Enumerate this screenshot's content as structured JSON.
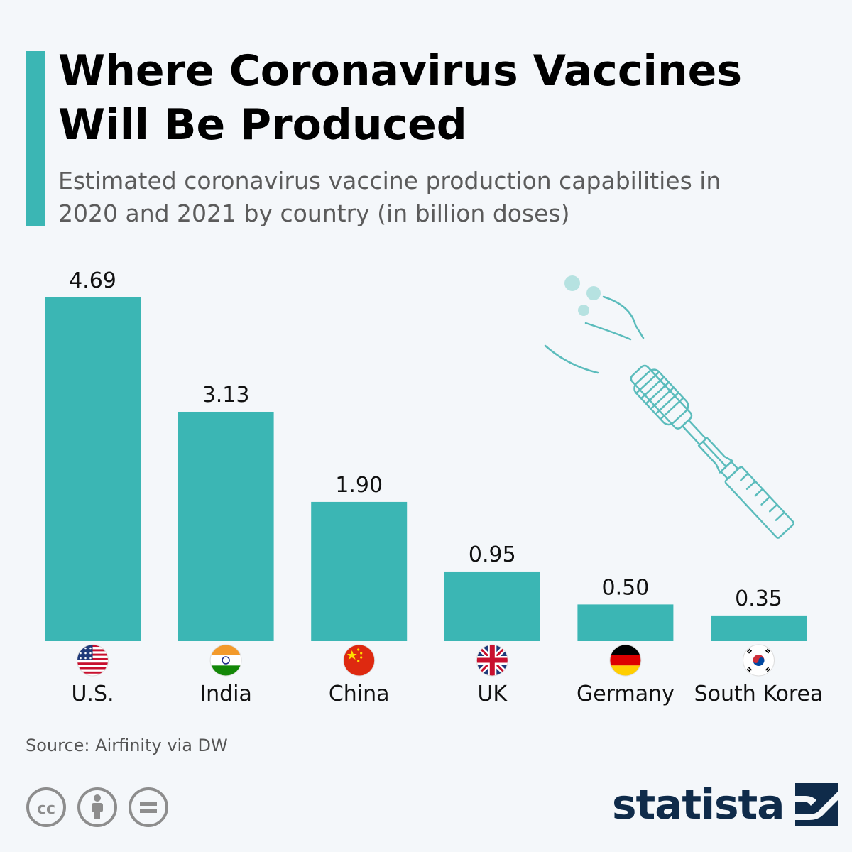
{
  "header": {
    "title_line1": "Where Coronavirus Vaccines",
    "title_line2": "Will Be Produced",
    "subtitle_line1": "Estimated coronavirus vaccine production capabilities in",
    "subtitle_line2": "2020 and 2021 by country (in billion doses)"
  },
  "colors": {
    "accent": "#3bb6b4",
    "bar": "#3bb6b4",
    "illustration": "#5bbcbc",
    "brand": "#0f2b4a"
  },
  "chart_data": {
    "type": "bar",
    "categories": [
      "U.S.",
      "India",
      "China",
      "UK",
      "Germany",
      "South Korea"
    ],
    "values": [
      4.69,
      3.13,
      1.9,
      0.95,
      0.5,
      0.35
    ],
    "value_labels": [
      "4.69",
      "3.13",
      "1.90",
      "0.95",
      "0.50",
      "0.35"
    ],
    "flags": [
      "us-flag-icon",
      "india-flag-icon",
      "china-flag-icon",
      "uk-flag-icon",
      "germany-flag-icon",
      "south-korea-flag-icon"
    ],
    "title": "Where Coronavirus Vaccines Will Be Produced",
    "subtitle": "Estimated coronavirus vaccine production capabilities in 2020 and 2021 by country (in billion doses)",
    "ylim": [
      0,
      4.69
    ],
    "grid": false
  },
  "footer": {
    "source": "Source: Airfinity via DW",
    "brand": "statista",
    "license_icons": [
      "cc-icon",
      "attribution-icon",
      "no-derivatives-icon"
    ]
  }
}
